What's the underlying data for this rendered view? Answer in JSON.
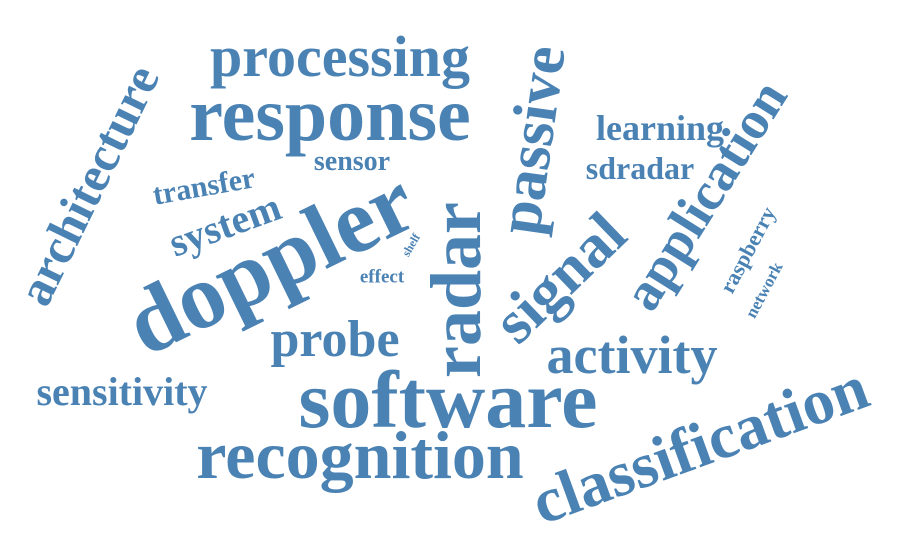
{
  "theme": {
    "word_color": "#4a82b4",
    "background": "#ffffff"
  },
  "words": [
    {
      "id": "software",
      "text": "software"
    },
    {
      "id": "doppler",
      "text": "doppler"
    },
    {
      "id": "response",
      "text": "response"
    },
    {
      "id": "recognition",
      "text": "recognition"
    },
    {
      "id": "classification",
      "text": "classification"
    },
    {
      "id": "radar",
      "text": "radar"
    },
    {
      "id": "application",
      "text": "application"
    },
    {
      "id": "passive",
      "text": "passive"
    },
    {
      "id": "signal",
      "text": "signal"
    },
    {
      "id": "processing",
      "text": "processing"
    },
    {
      "id": "architecture",
      "text": "architecture"
    },
    {
      "id": "activity",
      "text": "activity"
    },
    {
      "id": "probe",
      "text": "probe"
    },
    {
      "id": "sensitivity",
      "text": "sensitivity"
    },
    {
      "id": "system",
      "text": "system"
    },
    {
      "id": "learning",
      "text": "learning"
    },
    {
      "id": "sdradar",
      "text": "sdradar"
    },
    {
      "id": "transfer",
      "text": "transfer"
    },
    {
      "id": "sensor",
      "text": "sensor"
    },
    {
      "id": "raspberry",
      "text": "raspberry"
    },
    {
      "id": "network",
      "text": "network"
    },
    {
      "id": "effect",
      "text": "effect"
    },
    {
      "id": "shelf",
      "text": "shelf"
    }
  ]
}
